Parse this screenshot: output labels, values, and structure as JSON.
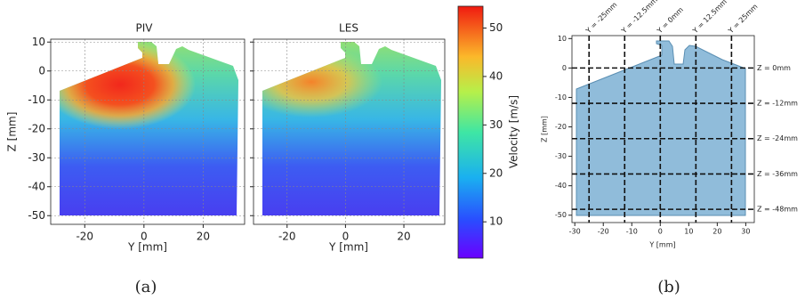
{
  "panel_a": {
    "plots": [
      {
        "title": "PIV",
        "xlabel": "Y [mm]"
      },
      {
        "title": "LES",
        "xlabel": "Y [mm]"
      }
    ],
    "ylabel": "Z [mm]",
    "xticks": [
      -20,
      0,
      20
    ],
    "yticks": [
      10,
      0,
      -10,
      -20,
      -30,
      -40,
      -50
    ],
    "xlim": [
      -31.5,
      34
    ],
    "ylim": [
      -53,
      11
    ],
    "grid": true,
    "colorbar": {
      "label": "Velocity [m/s]",
      "ticks": [
        10,
        20,
        30,
        40,
        50
      ],
      "lim": [
        2.5,
        54.5
      ]
    },
    "caption": "(a)"
  },
  "panel_b": {
    "xlabel": "Y [mm]",
    "ylabel": "Z [mm]",
    "xticks": [
      -30,
      -20,
      -10,
      0,
      10,
      20,
      30
    ],
    "yticks": [
      10,
      0,
      -10,
      -20,
      -30,
      -40,
      -50
    ],
    "xlim": [
      -31,
      33
    ],
    "ylim": [
      -52.5,
      11
    ],
    "vertical_lines": [
      {
        "value": -25,
        "label": "Y = -25mm"
      },
      {
        "value": -12.5,
        "label": "Y = -12.5mm"
      },
      {
        "value": 0,
        "label": "Y = 0mm"
      },
      {
        "value": 12.5,
        "label": "Y = 12.5mm"
      },
      {
        "value": 25,
        "label": "Y = 25mm"
      }
    ],
    "horizontal_lines": [
      {
        "value": 0,
        "label": "Z = 0mm"
      },
      {
        "value": -12,
        "label": "Z = -12mm"
      },
      {
        "value": -24,
        "label": "Z = -24mm"
      },
      {
        "value": -36,
        "label": "Z = -36mm"
      },
      {
        "value": -48,
        "label": "Z = -48mm"
      }
    ],
    "caption": "(b)"
  }
}
